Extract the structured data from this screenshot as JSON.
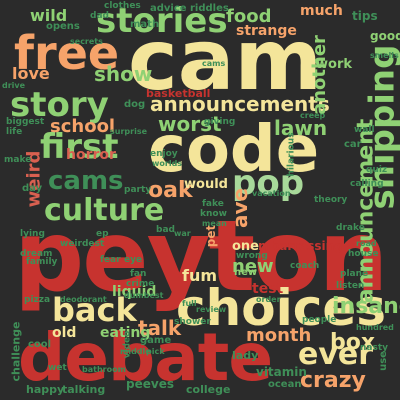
{
  "words": [
    "peyton",
    "debate",
    "cam",
    "code",
    "choices",
    "free",
    "stories",
    "story",
    "first",
    "culture",
    "cams",
    "shipping",
    "announcements",
    "pop",
    "back",
    "ever",
    "box",
    "crazy",
    "worst",
    "show",
    "school",
    "announcement",
    "insane",
    "month",
    "lawn",
    "talk",
    "love",
    "wild",
    "food",
    "another",
    "oak",
    "weird",
    "ave",
    "new",
    "would",
    "fum",
    "test",
    "embarrassing",
    "liquid",
    "eating",
    "old",
    "strange",
    "basketball",
    "horror",
    "much",
    "work",
    "good",
    "tips",
    "riddles",
    "advice",
    "opens",
    "math",
    "dad",
    "clothes",
    "vitamin",
    "ocean",
    "college",
    "peeves",
    "happy",
    "talking",
    "bathroom",
    "lady",
    "people",
    "nasty",
    "game",
    "challenge",
    "coach",
    "house",
    "drake",
    "theory",
    "vacation",
    "fake",
    "pet",
    "party",
    "day",
    "giving",
    "creep",
    "car",
    "biggest",
    "life",
    "enjoy",
    "worlds",
    "hilarious",
    "make",
    "surprise",
    "fear",
    "fan",
    "crime",
    "dumbest",
    "video",
    "eye",
    "shower",
    "order",
    "full",
    "review",
    "middle",
    "pick",
    "one",
    "wrong",
    "smells",
    "road",
    "use",
    "hundred",
    "plane",
    "listen",
    "deodorant",
    "pizza",
    "wet",
    "cool",
    "dog",
    "lying",
    "weirdest",
    "quiz",
    "calling",
    "dream",
    "know",
    "mean",
    "bad",
    "war",
    "ep",
    "secrets",
    "wall",
    "family",
    "drive",
    "new",
    "cams"
  ]
}
